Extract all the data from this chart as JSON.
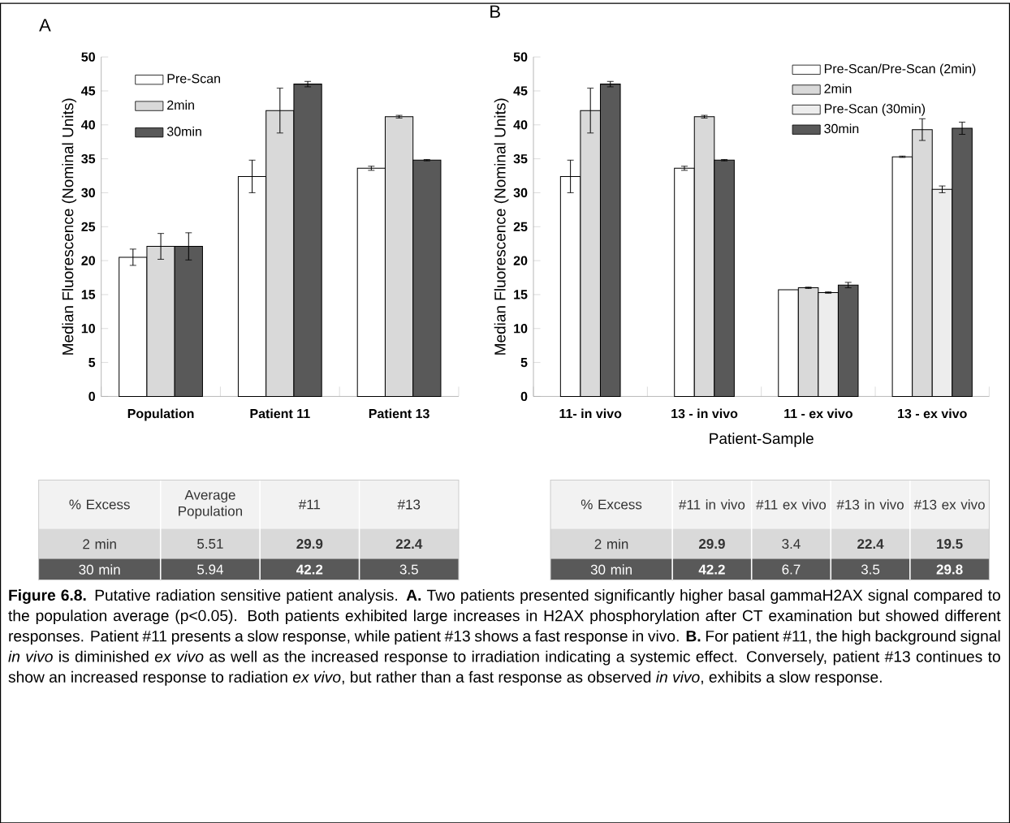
{
  "chart_data": [
    {
      "type": "bar",
      "title": "A",
      "ylabel": "Median Fluorescence (Nominal Units)",
      "categories": [
        "Population",
        "Patient 11",
        "Patient 13"
      ],
      "ylim": [
        0,
        50
      ],
      "yticks": [
        0,
        5,
        10,
        15,
        20,
        25,
        30,
        35,
        40,
        45,
        50
      ],
      "legend": "top left",
      "series": [
        {
          "name": "Pre-Scan",
          "color": "#ffffff",
          "values": [
            20.5,
            32.4,
            33.6
          ],
          "errors": [
            1.2,
            2.4,
            0.3
          ]
        },
        {
          "name": "2min",
          "color": "#d9d9d9",
          "values": [
            22.1,
            42.1,
            41.2
          ],
          "errors": [
            1.9,
            3.3,
            0.2
          ]
        },
        {
          "name": "30min",
          "color": "#595959",
          "values": [
            22.1,
            46.0,
            34.8
          ],
          "errors": [
            2.0,
            0.4,
            0.1
          ]
        }
      ],
      "annotations": [
        "% Excess",
        "Average Population",
        "#11",
        "#13",
        "2 min",
        "5.51",
        "**29.9**",
        "**22.4**",
        "30 min",
        "5.94",
        "**42.2**",
        "3.5"
      ]
    },
    {
      "type": "bar",
      "title": "B",
      "xlabel": "Patient-Sample",
      "ylabel": "Median Fluorescence (Nominal Units)",
      "categories": [
        "11- in vivo",
        "13 - in vivo",
        "11 - ex vivo",
        "13 - ex vivo"
      ],
      "ylim": [
        0,
        50
      ],
      "yticks": [
        0,
        5,
        10,
        15,
        20,
        25,
        30,
        35,
        40,
        45,
        50
      ],
      "legend": "top right",
      "series": [
        {
          "name": "Pre-Scan/Pre-Scan (2min)",
          "color": "#ffffff",
          "values": [
            32.4,
            33.6,
            15.7,
            35.3
          ],
          "errors": [
            2.4,
            0.3,
            null,
            0.1
          ]
        },
        {
          "name": "2min",
          "color": "#d9d9d9",
          "values": [
            42.1,
            41.2,
            16.0,
            39.3
          ],
          "errors": [
            3.3,
            0.2,
            0.1,
            1.6
          ]
        },
        {
          "name": "Pre-Scan (30min)",
          "color": "#ededed",
          "values": [
            null,
            null,
            15.3,
            30.5
          ],
          "errors": [
            null,
            null,
            0.1,
            0.5
          ]
        },
        {
          "name": "30min",
          "color": "#595959",
          "values": [
            46.0,
            34.8,
            16.4,
            39.5
          ],
          "errors": [
            0.4,
            0.1,
            0.4,
            0.9
          ]
        }
      ],
      "annotations": [
        "% Excess",
        "#11 in vivo",
        "#11 ex vivo",
        "#13 in vivo",
        "#13 ex vivo",
        "2 min",
        "**29.9**",
        "3.4",
        "**22.4**",
        "**19.5**",
        "30 min",
        "**42.2**",
        "6.7",
        "3.5",
        "**29.8**",
        "**Figure 6.8.** Putative radiation sensitive patient analysis. **A.** Two patients presented significantly higher basal gammaH2AX signal compared to the population average (p<0.05). Both patients exhibited large increases in H2AX phosphorylation after CT examination but showed different responses. Patient #11 presents a slow response, while patient #13 shows a fast response in vivo. **B.** For patient #11, the high background signal *in vivo* is diminished *ex vivo* as well as the increased response to irradiation indicating a systemic effect. Conversely, patient #13 continues to show an increased response to radiation *ex vivo*, but rather than a fast response as observed *in vivo*, exhibits a slow response."
      ]
    }
  ]
}
